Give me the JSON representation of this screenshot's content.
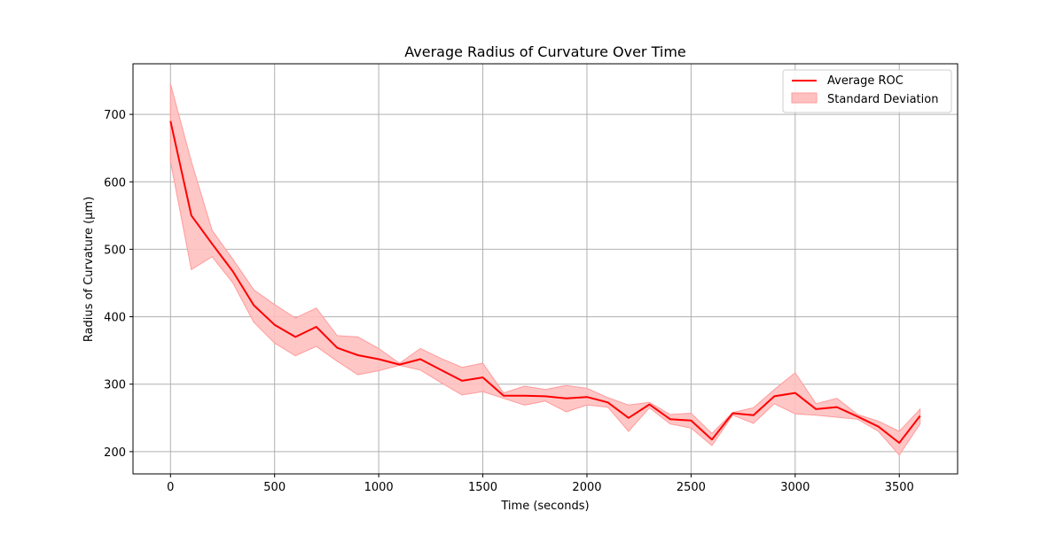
{
  "chart_data": {
    "type": "line",
    "title": "Average Radius of Curvature Over Time",
    "xlabel": "Time (seconds)",
    "ylabel": "Radius of Curvature (µm)",
    "xlim": [
      -180,
      3780
    ],
    "ylim": [
      167,
      775
    ],
    "xticks": [
      0,
      500,
      1000,
      1500,
      2000,
      2500,
      3000,
      3500
    ],
    "yticks": [
      200,
      300,
      400,
      500,
      600,
      700
    ],
    "grid": true,
    "legend_position": "top-right",
    "legend": [
      "Average ROC",
      "Standard Deviation"
    ],
    "colors": {
      "line": "#ff0000",
      "band": "#ffc0c0",
      "band_edge": "#ff9b9b"
    },
    "x": [
      0,
      100,
      200,
      300,
      400,
      500,
      600,
      700,
      800,
      900,
      1000,
      1100,
      1200,
      1300,
      1400,
      1500,
      1600,
      1700,
      1800,
      1900,
      2000,
      2100,
      2200,
      2300,
      2400,
      2500,
      2600,
      2700,
      2800,
      2900,
      3000,
      3100,
      3200,
      3300,
      3400,
      3500,
      3600
    ],
    "series": [
      {
        "name": "Average ROC",
        "values": [
          690,
          550,
          508,
          467,
          417,
          388,
          370,
          385,
          354,
          343,
          337,
          329,
          337,
          321,
          305,
          310,
          283,
          283,
          282,
          279,
          281,
          273,
          250,
          270,
          248,
          246,
          218,
          257,
          254,
          282,
          287,
          263,
          266,
          252,
          237,
          213,
          253
        ]
      },
      {
        "name": "Standard Deviation",
        "upper": [
          745,
          630,
          528,
          485,
          440,
          418,
          398,
          413,
          372,
          370,
          353,
          331,
          353,
          338,
          325,
          331,
          287,
          297,
          292,
          298,
          294,
          280,
          269,
          273,
          255,
          257,
          227,
          258,
          265,
          292,
          317,
          271,
          279,
          255,
          245,
          230,
          263
        ],
        "lower": [
          630,
          470,
          489,
          450,
          392,
          361,
          342,
          356,
          334,
          314,
          320,
          328,
          321,
          302,
          284,
          289,
          279,
          269,
          275,
          259,
          269,
          266,
          230,
          265,
          241,
          235,
          209,
          254,
          242,
          271,
          256,
          254,
          251,
          248,
          230,
          195,
          241
        ]
      }
    ]
  }
}
